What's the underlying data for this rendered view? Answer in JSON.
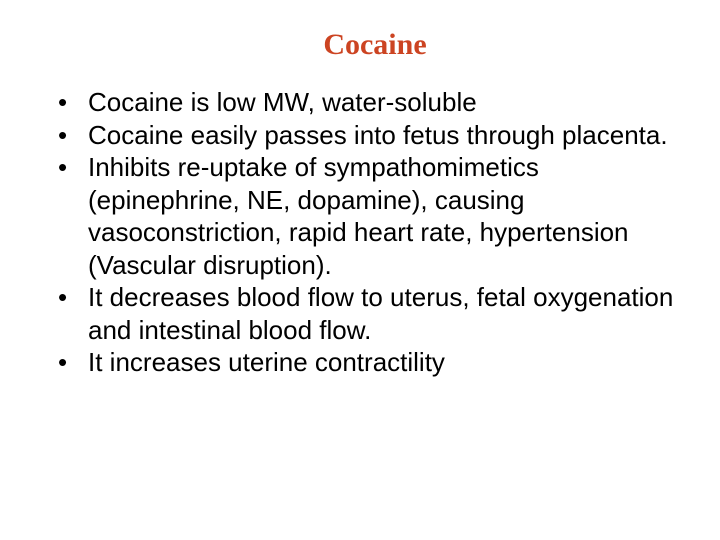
{
  "title": "Cocaine",
  "title_color": "#cc4422",
  "title_font_family": "Times New Roman, serif",
  "title_font_size": 30,
  "body_font_family": "Arial, sans-serif",
  "body_font_size": 26,
  "body_color": "#000000",
  "background_color": "#ffffff",
  "bullets": [
    "Cocaine is low MW, water-soluble",
    "Cocaine easily passes into fetus through placenta.",
    "Inhibits re-uptake of sympathomimetics (epinephrine, NE, dopamine), causing vasoconstriction, rapid heart rate, hypertension (Vascular disruption).",
    "It decreases blood flow to uterus, fetal oxygenation and intestinal blood flow.",
    "It increases uterine contractility"
  ]
}
